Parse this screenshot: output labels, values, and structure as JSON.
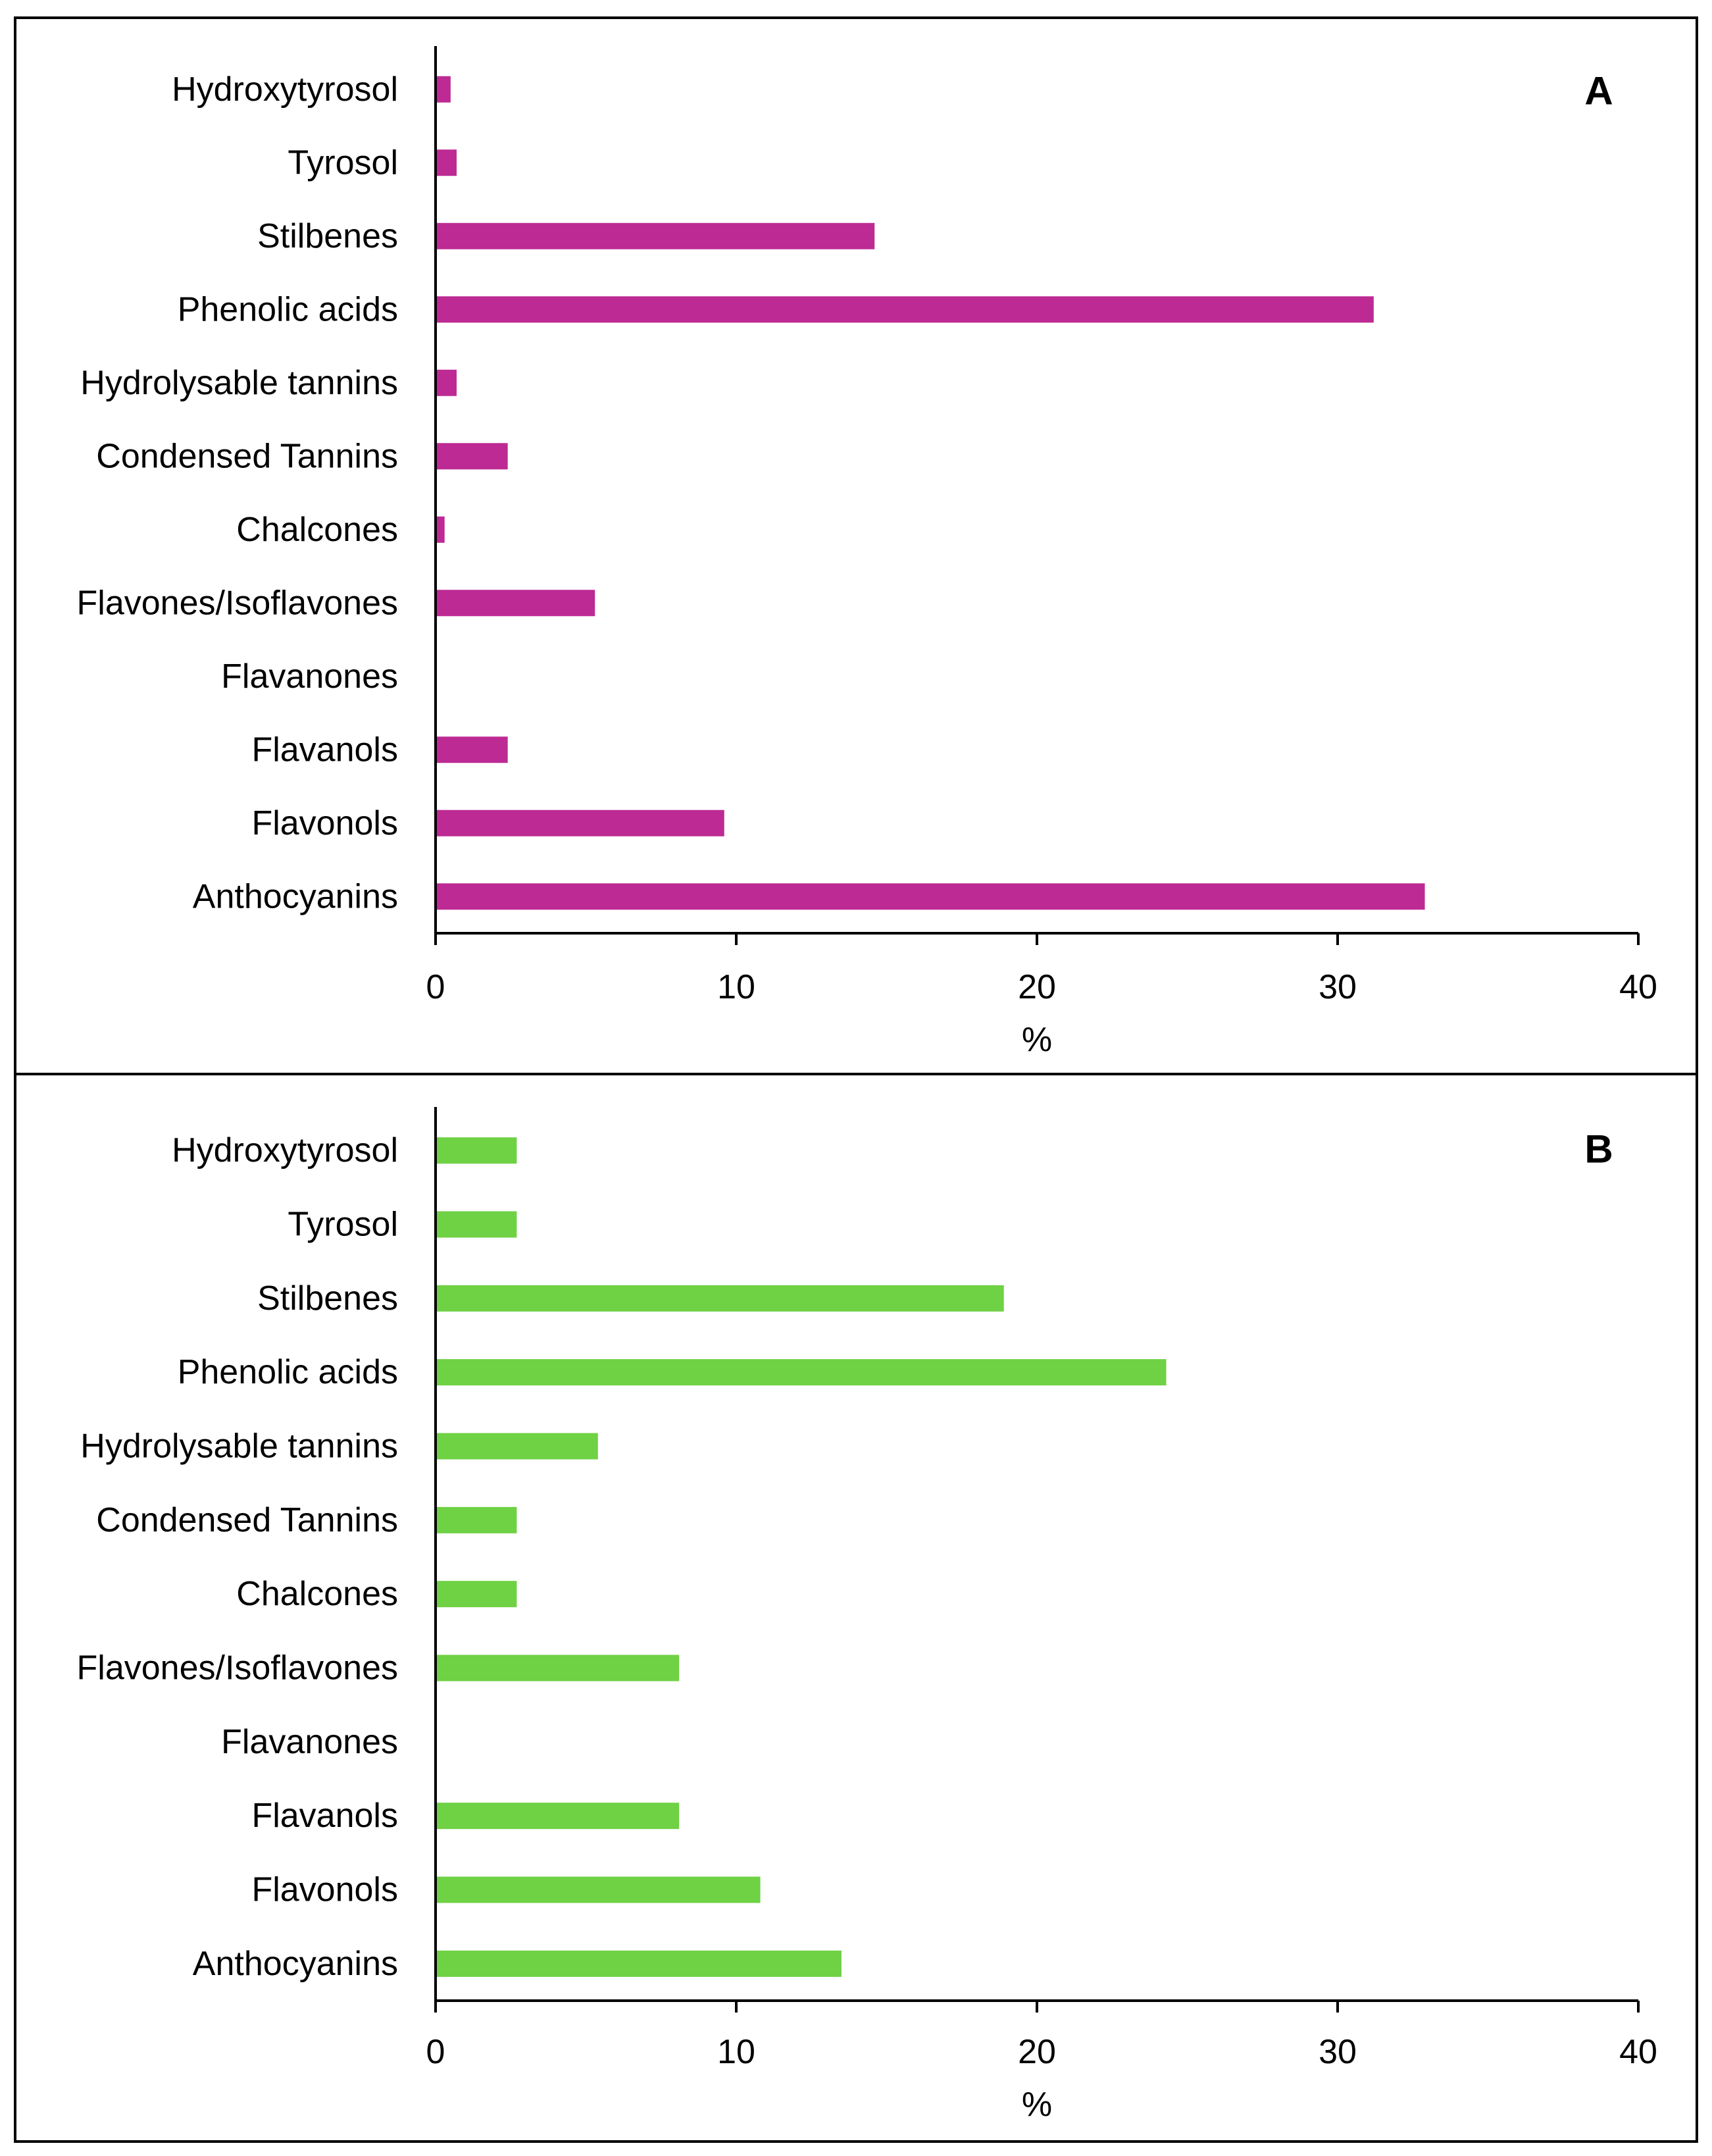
{
  "chart_data": [
    {
      "type": "bar",
      "orientation": "horizontal",
      "panel_label": "A",
      "color": "#bd2a93",
      "categories": [
        "Hydroxytyrosol",
        "Tyrosol",
        "Stilbenes",
        "Phenolic acids",
        "Hydrolysable tannins",
        "Condensed Tannins",
        "Chalcones",
        "Flavones/Isoflavones",
        "Flavanones",
        "Flavanols",
        "Flavonols",
        "Anthocyanins"
      ],
      "values": [
        0.5,
        0.7,
        14.6,
        31.2,
        0.7,
        2.4,
        0.3,
        5.3,
        0,
        2.4,
        9.6,
        32.9
      ],
      "xlabel": "%",
      "ylabel": "",
      "xlim": [
        0,
        40
      ],
      "xticks": [
        "0",
        "10",
        "20",
        "30",
        "40"
      ]
    },
    {
      "type": "bar",
      "orientation": "horizontal",
      "panel_label": "B",
      "color": "#6fd144",
      "categories": [
        "Hydroxytyrosol",
        "Tyrosol",
        "Stilbenes",
        "Phenolic acids",
        "Hydrolysable tannins",
        "Condensed Tannins",
        "Chalcones",
        "Flavones/Isoflavones",
        "Flavanones",
        "Flavanols",
        "Flavonols",
        "Anthocyanins"
      ],
      "values": [
        2.7,
        2.7,
        18.9,
        24.3,
        5.4,
        2.7,
        2.7,
        8.1,
        0,
        8.1,
        10.8,
        13.5
      ],
      "xlabel": "%",
      "ylabel": "",
      "xlim": [
        0,
        40
      ],
      "xticks": [
        "0",
        "10",
        "20",
        "30",
        "40"
      ]
    }
  ]
}
